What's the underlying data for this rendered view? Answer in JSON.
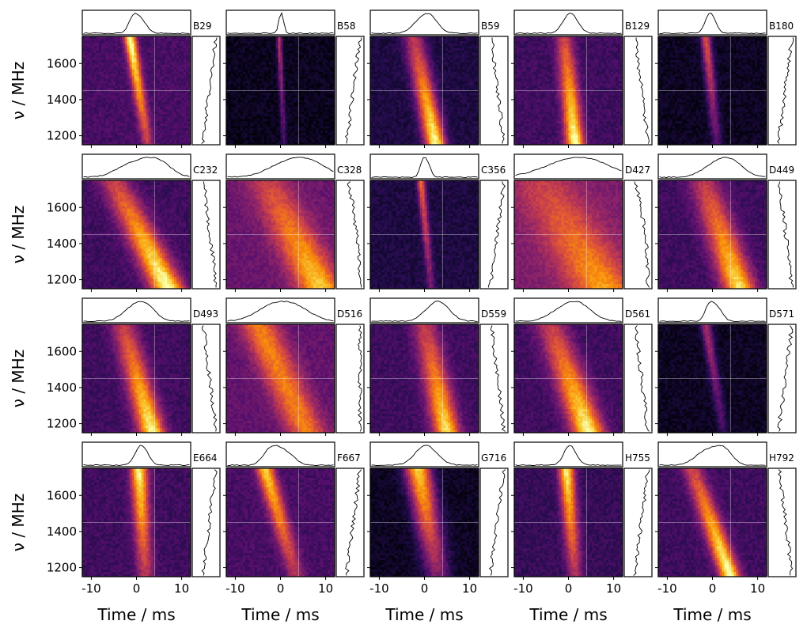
{
  "chart_data": {
    "type": "heatmap",
    "xlabel": "Time / ms",
    "ylabel": "ν / MHz",
    "xlim": [
      -12,
      12
    ],
    "ylim": [
      1150,
      1750
    ],
    "xticks": [
      -10,
      0,
      10
    ],
    "yticks": [
      1200,
      1400,
      1600
    ],
    "x_tick_labels": [
      "-10",
      "0",
      "10"
    ],
    "y_tick_labels": [
      "1200",
      "1400",
      "1600"
    ],
    "colormap": "inferno",
    "grid": false,
    "reference_lines": {
      "time_ms": 4,
      "freq_mhz": 1450
    },
    "layout": {
      "rows": 4,
      "cols": 5
    },
    "panels": [
      {
        "id": "B29",
        "t_start": -1.5,
        "t_end": 2.5,
        "width": 0.9,
        "bright": 0.85,
        "background": 0.22,
        "dark": 0,
        "spectrum": "high"
      },
      {
        "id": "B58",
        "t_start": -0.3,
        "t_end": 0.8,
        "width": 0.4,
        "bright": 0.45,
        "background": 0.05,
        "dark": 0,
        "spectrum": "high"
      },
      {
        "id": "B59",
        "t_start": -2.5,
        "t_end": 2.5,
        "width": 1.6,
        "bright": 0.9,
        "background": 0.12,
        "dark": 0,
        "spectrum": "low"
      },
      {
        "id": "B129",
        "t_start": -1.0,
        "t_end": 1.5,
        "width": 1.4,
        "bright": 0.85,
        "background": 0.2,
        "dark": 0,
        "spectrum": "low"
      },
      {
        "id": "B180",
        "t_start": -1.5,
        "t_end": 1.0,
        "width": 0.8,
        "bright": 0.55,
        "background": 0.06,
        "dark": 0,
        "spectrum": "high"
      },
      {
        "id": "C232",
        "t_start": -5.0,
        "t_end": 7.0,
        "width": 2.5,
        "bright": 0.85,
        "background": 0.2,
        "dark": 0,
        "spectrum": "low"
      },
      {
        "id": "C328",
        "t_start": -3.0,
        "t_end": 9.0,
        "width": 3.5,
        "bright": 0.6,
        "background": 0.3,
        "dark": 0,
        "spectrum": "low"
      },
      {
        "id": "C356",
        "t_start": -0.8,
        "t_end": 1.5,
        "width": 0.6,
        "bright": 0.55,
        "background": 0.12,
        "dark": 0,
        "spectrum": "high"
      },
      {
        "id": "D427",
        "t_start": -6.0,
        "t_end": 8.0,
        "width": 5.0,
        "bright": 0.45,
        "background": 0.35,
        "dark": 0,
        "spectrum": "low"
      },
      {
        "id": "D449",
        "t_start": -2.0,
        "t_end": 6.0,
        "width": 2.5,
        "bright": 0.75,
        "background": 0.2,
        "dark": 0,
        "spectrum": "low"
      },
      {
        "id": "D493",
        "t_start": -3.0,
        "t_end": 3.5,
        "width": 2.0,
        "bright": 0.8,
        "background": 0.2,
        "dark": 0,
        "spectrum": "low"
      },
      {
        "id": "D516",
        "t_start": -5.0,
        "t_end": 6.0,
        "width": 3.0,
        "bright": 0.55,
        "background": 0.28,
        "dark": 0,
        "spectrum": "flat"
      },
      {
        "id": "D559",
        "t_start": 0.0,
        "t_end": 5.0,
        "width": 2.0,
        "bright": 0.75,
        "background": 0.2,
        "dark": 0,
        "spectrum": "low"
      },
      {
        "id": "D561",
        "t_start": -4.0,
        "t_end": 4.5,
        "width": 2.5,
        "bright": 0.8,
        "background": 0.2,
        "dark": 0,
        "spectrum": "low"
      },
      {
        "id": "D571",
        "t_start": -1.5,
        "t_end": 2.5,
        "width": 0.8,
        "bright": 0.4,
        "background": 0.06,
        "dark": 0,
        "spectrum": "high"
      },
      {
        "id": "E664",
        "t_start": 0.5,
        "t_end": 2.0,
        "width": 1.3,
        "bright": 0.8,
        "background": 0.2,
        "dark": 0,
        "spectrum": "high"
      },
      {
        "id": "F667",
        "t_start": -3.5,
        "t_end": 3.5,
        "width": 1.4,
        "bright": 0.7,
        "background": 0.22,
        "dark": 0,
        "spectrum": "high"
      },
      {
        "id": "G716",
        "t_start": -1.5,
        "t_end": 3.0,
        "width": 2.0,
        "bright": 0.85,
        "background": 0.06,
        "dark": 0.95,
        "spectrum": "high"
      },
      {
        "id": "H755",
        "t_start": -0.5,
        "t_end": 1.5,
        "width": 1.2,
        "bright": 0.8,
        "background": 0.18,
        "dark": 0,
        "spectrum": "high"
      },
      {
        "id": "H792",
        "t_start": -4.5,
        "t_end": 4.0,
        "width": 1.6,
        "bright": 0.85,
        "background": 0.2,
        "dark": 0,
        "spectrum": "low"
      }
    ]
  }
}
